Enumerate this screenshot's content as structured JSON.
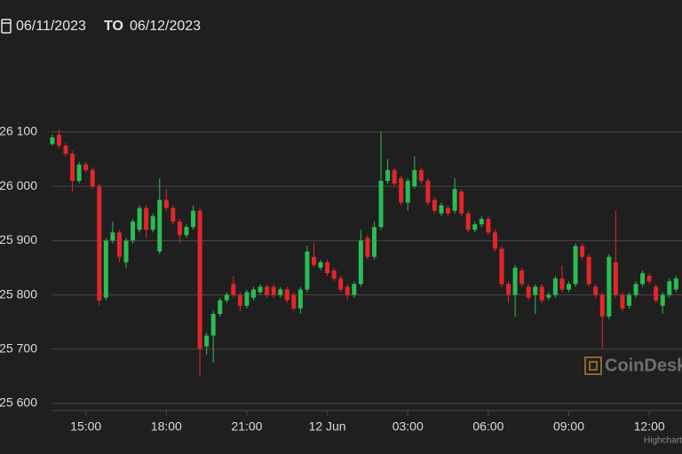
{
  "header": {
    "from": "06/11/2023",
    "to_label": "TO",
    "to": "06/12/2023"
  },
  "chart_data": {
    "type": "candlestick",
    "watermark": "CoinDesk",
    "credit": "Highcharts",
    "up_color": "#2bbd55",
    "down_color": "#e3262b",
    "grid": true,
    "xlim": [
      11.8,
      37.22
    ],
    "xticks": [
      {
        "value": 15,
        "label": "15:00"
      },
      {
        "value": 18,
        "label": "18:00"
      },
      {
        "value": 21,
        "label": "21:00"
      },
      {
        "value": 24,
        "label": "12 Jun"
      },
      {
        "value": 27,
        "label": "03:00"
      },
      {
        "value": 30,
        "label": "06:00"
      },
      {
        "value": 33,
        "label": "09:00"
      },
      {
        "value": 36,
        "label": "12:00"
      }
    ],
    "ylim": [
      25587,
      26188
    ],
    "yticks": [
      {
        "value": 25600,
        "label": "25 600"
      },
      {
        "value": 25700,
        "label": "25 700"
      },
      {
        "value": 25800,
        "label": "25 800"
      },
      {
        "value": 25900,
        "label": "25 900"
      },
      {
        "value": 26000,
        "label": "26 000"
      },
      {
        "value": 26100,
        "label": "26 100"
      }
    ],
    "x": [
      13.75,
      14,
      14.25,
      14.5,
      14.75,
      15,
      15.25,
      15.5,
      15.75,
      16,
      16.25,
      16.5,
      16.75,
      17,
      17.25,
      17.5,
      17.75,
      18,
      18.25,
      18.5,
      18.75,
      19,
      19.25,
      19.5,
      19.75,
      20,
      20.25,
      20.5,
      20.75,
      21,
      21.25,
      21.5,
      21.75,
      22,
      22.25,
      22.5,
      22.75,
      23,
      23.25,
      23.5,
      23.75,
      24,
      24.25,
      24.5,
      24.75,
      25,
      25.25,
      25.5,
      25.75,
      26,
      26.25,
      26.5,
      26.75,
      27,
      27.25,
      27.5,
      27.75,
      28,
      28.25,
      28.5,
      28.75,
      29,
      29.25,
      29.5,
      29.75,
      30,
      30.25,
      30.5,
      30.75,
      31,
      31.25,
      31.5,
      31.75,
      32,
      32.25,
      32.5,
      32.75,
      33,
      33.25,
      33.5,
      33.75,
      34,
      34.25,
      34.5,
      34.75,
      35,
      35.25,
      35.5,
      35.75,
      36,
      36.25,
      36.5,
      36.75,
      37
    ],
    "open": [
      26078,
      26095,
      26075,
      26060,
      26010,
      26040,
      26030,
      26000,
      25795,
      25900,
      25915,
      25860,
      25900,
      25920,
      25960,
      25920,
      25880,
      25975,
      25960,
      25935,
      25910,
      25925,
      25955,
      25705,
      25725,
      25765,
      25790,
      25820,
      25800,
      25780,
      25795,
      25805,
      25815,
      25815,
      25800,
      25810,
      25800,
      25775,
      25810,
      25870,
      25850,
      25860,
      25845,
      25830,
      25815,
      25800,
      25820,
      25905,
      25870,
      25925,
      26010,
      26030,
      26015,
      25970,
      26000,
      26030,
      26010,
      25975,
      25950,
      25960,
      25955,
      25990,
      25950,
      25920,
      25930,
      25940,
      25915,
      25885,
      25820,
      25800,
      25845,
      25815,
      25800,
      25815,
      25795,
      25800,
      25830,
      25810,
      25820,
      25890,
      25870,
      25815,
      25800,
      25760,
      25860,
      25800,
      25780,
      25800,
      25820,
      25835,
      25815,
      25780,
      25800,
      25810
    ],
    "high": [
      26095,
      26105,
      26080,
      26065,
      26045,
      26045,
      26035,
      26005,
      25905,
      25935,
      25920,
      25905,
      25940,
      25965,
      25965,
      25950,
      26015,
      25995,
      25965,
      25940,
      25930,
      25965,
      25960,
      25730,
      25770,
      25795,
      25805,
      25835,
      25805,
      25810,
      25815,
      25820,
      25820,
      25820,
      25815,
      25815,
      25805,
      25815,
      25890,
      25895,
      25865,
      25865,
      25850,
      25835,
      25820,
      25825,
      25920,
      25910,
      25935,
      26100,
      26050,
      26035,
      26020,
      26015,
      26055,
      26035,
      26015,
      25980,
      25970,
      25965,
      26015,
      25995,
      25955,
      25935,
      25945,
      25945,
      25920,
      25890,
      25825,
      25855,
      25850,
      25820,
      25820,
      25820,
      25805,
      25835,
      25855,
      25825,
      25895,
      25895,
      25875,
      25820,
      25805,
      25875,
      25955,
      25805,
      25805,
      25825,
      25845,
      25840,
      25820,
      25805,
      25830,
      25835
    ],
    "low": [
      26075,
      26070,
      26055,
      25990,
      26005,
      26025,
      25995,
      25780,
      25790,
      25895,
      25860,
      25850,
      25895,
      25915,
      25905,
      25915,
      25875,
      25955,
      25930,
      25895,
      25905,
      25920,
      25650,
      25690,
      25675,
      25760,
      25785,
      25795,
      25770,
      25775,
      25790,
      25800,
      25795,
      25795,
      25795,
      25785,
      25770,
      25765,
      25805,
      25850,
      25845,
      25835,
      25825,
      25805,
      25790,
      25795,
      25815,
      25865,
      25865,
      25920,
      26005,
      26000,
      25965,
      25955,
      25995,
      26005,
      25965,
      25950,
      25945,
      25945,
      25950,
      25945,
      25915,
      25915,
      25925,
      25910,
      25880,
      25815,
      25785,
      25760,
      25815,
      25790,
      25765,
      25785,
      25790,
      25795,
      25805,
      25805,
      25815,
      25865,
      25815,
      25795,
      25700,
      25755,
      25795,
      25770,
      25775,
      25795,
      25815,
      25820,
      25785,
      25765,
      25795,
      25805
    ],
    "close": [
      26090,
      26075,
      26060,
      26010,
      26040,
      26030,
      26000,
      25790,
      25900,
      25915,
      25870,
      25900,
      25935,
      25960,
      25920,
      25945,
      25975,
      25960,
      25935,
      25910,
      25925,
      25955,
      25700,
      25725,
      25765,
      25790,
      25800,
      25800,
      25780,
      25805,
      25810,
      25815,
      25800,
      25800,
      25810,
      25790,
      25775,
      25810,
      25880,
      25855,
      25860,
      25840,
      25830,
      25810,
      25800,
      25820,
      25900,
      25870,
      25925,
      26010,
      26030,
      26005,
      25970,
      26010,
      26030,
      26010,
      25970,
      25955,
      25965,
      25950,
      25995,
      25950,
      25920,
      25930,
      25940,
      25915,
      25885,
      25820,
      25800,
      25850,
      25820,
      25795,
      25815,
      25790,
      25800,
      25830,
      25810,
      25820,
      25890,
      25870,
      25820,
      25800,
      25760,
      25870,
      25800,
      25775,
      25800,
      25820,
      25840,
      25825,
      25790,
      25800,
      25825,
      25830
    ]
  }
}
